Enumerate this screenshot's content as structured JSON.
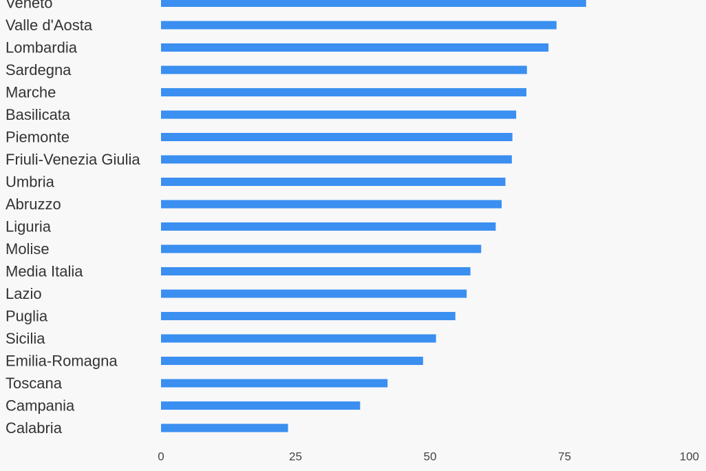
{
  "chart_data": {
    "type": "bar",
    "orientation": "horizontal",
    "categories": [
      "Veneto",
      "Valle d'Aosta",
      "Lombardia",
      "Sardegna",
      "Marche",
      "Basilicata",
      "Piemonte",
      "Friuli-Venezia Giulia",
      "Umbria",
      "Abruzzo",
      "Liguria",
      "Molise",
      "Media Italia",
      "Lazio",
      "Puglia",
      "Sicilia",
      "Emilia-Romagna",
      "Toscana",
      "Campania",
      "Calabria"
    ],
    "values": [
      79.0,
      73.5,
      72.0,
      68.0,
      67.9,
      66.0,
      65.3,
      65.2,
      64.0,
      63.3,
      62.2,
      59.5,
      57.5,
      56.8,
      54.7,
      51.1,
      48.7,
      42.1,
      37.0,
      23.6
    ],
    "xlim": [
      0,
      100
    ],
    "xticks": [
      0,
      25,
      50,
      75,
      100
    ],
    "bar_color": "#3a8ff0",
    "background_color": "#f8f8f9",
    "grid": false,
    "legend": "none"
  }
}
